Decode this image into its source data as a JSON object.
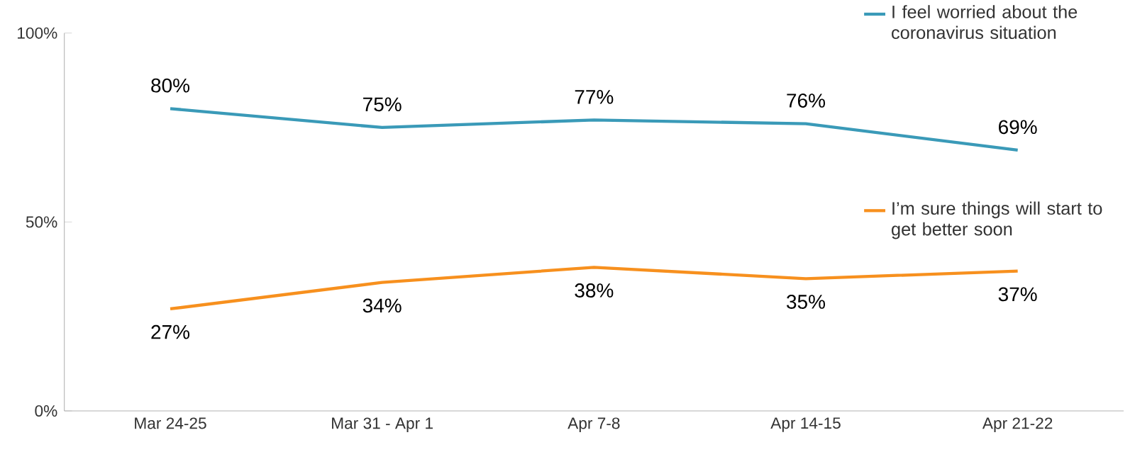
{
  "chart_data": {
    "type": "line",
    "categories": [
      "Mar 24-25",
      "Mar 31 - Apr 1",
      "Apr 7-8",
      "Apr 14-15",
      "Apr 21-22"
    ],
    "series": [
      {
        "name": "I feel worried about the coronavirus situation",
        "color": "#3a9ab8",
        "values": [
          80,
          75,
          77,
          76,
          69
        ],
        "value_labels": [
          "80%",
          "75%",
          "77%",
          "76%",
          "69%"
        ]
      },
      {
        "name": "I’m sure things will start to get better soon",
        "color": "#f7901e",
        "values": [
          27,
          34,
          38,
          35,
          37
        ],
        "value_labels": [
          "27%",
          "34%",
          "38%",
          "35%",
          "37%"
        ]
      }
    ],
    "ylim": [
      0,
      100
    ],
    "yticks": [
      {
        "value": 0,
        "label": "0%"
      },
      {
        "value": 50,
        "label": "50%"
      },
      {
        "value": 100,
        "label": "100%"
      }
    ],
    "grid": false,
    "legend": "right",
    "marker": "none",
    "line_style": "solid"
  }
}
